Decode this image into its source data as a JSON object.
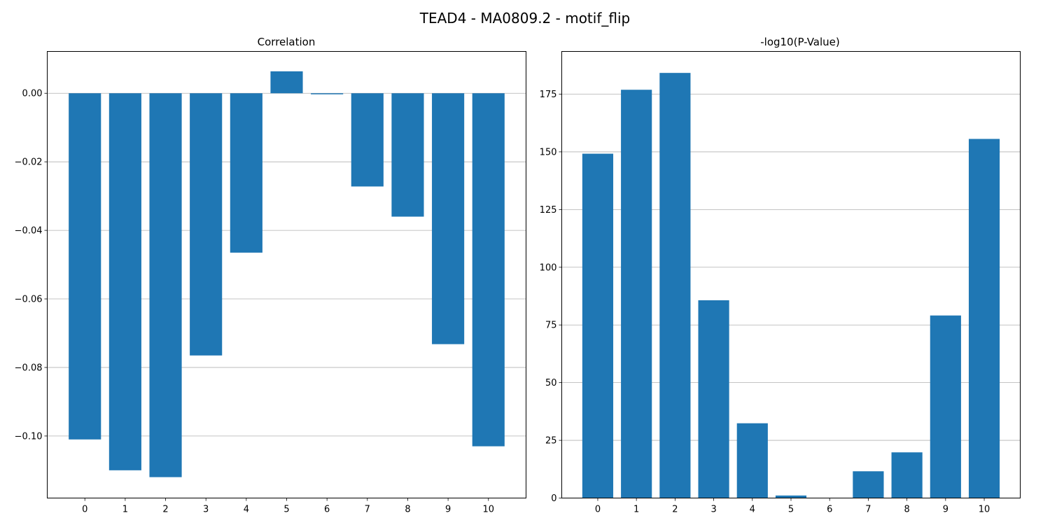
{
  "figure": {
    "title": "TEAD4 - MA0809.2 - motif_flip"
  },
  "chart_data": [
    {
      "type": "bar",
      "title": "Correlation",
      "categories": [
        "0",
        "1",
        "2",
        "3",
        "4",
        "5",
        "6",
        "7",
        "8",
        "9",
        "10"
      ],
      "values": [
        -0.101,
        -0.11,
        -0.112,
        -0.0765,
        -0.0465,
        0.0064,
        -0.0003,
        -0.0272,
        -0.036,
        -0.0732,
        -0.103
      ],
      "ylim": [
        -0.1181,
        0.0122
      ],
      "yticks": [
        0.0,
        -0.02,
        -0.04,
        -0.06,
        -0.08,
        -0.1
      ],
      "ytick_labels": [
        "0.00",
        "−0.02",
        "−0.04",
        "−0.06",
        "−0.08",
        "−0.10"
      ],
      "xlabel": "",
      "ylabel": "",
      "grid": "y",
      "color": "#1f77b4"
    },
    {
      "type": "bar",
      "title": "-log10(P-Value)",
      "categories": [
        "0",
        "1",
        "2",
        "3",
        "4",
        "5",
        "6",
        "7",
        "8",
        "9",
        "10"
      ],
      "values": [
        149.2,
        176.9,
        184.2,
        85.7,
        32.4,
        1.1,
        0.1,
        11.6,
        19.8,
        79.1,
        155.6
      ],
      "ylim": [
        0,
        193.5
      ],
      "yticks": [
        0,
        25,
        50,
        75,
        100,
        125,
        150,
        175
      ],
      "ytick_labels": [
        "0",
        "25",
        "50",
        "75",
        "100",
        "125",
        "150",
        "175"
      ],
      "xlabel": "",
      "ylabel": "",
      "grid": "y",
      "color": "#1f77b4"
    }
  ]
}
